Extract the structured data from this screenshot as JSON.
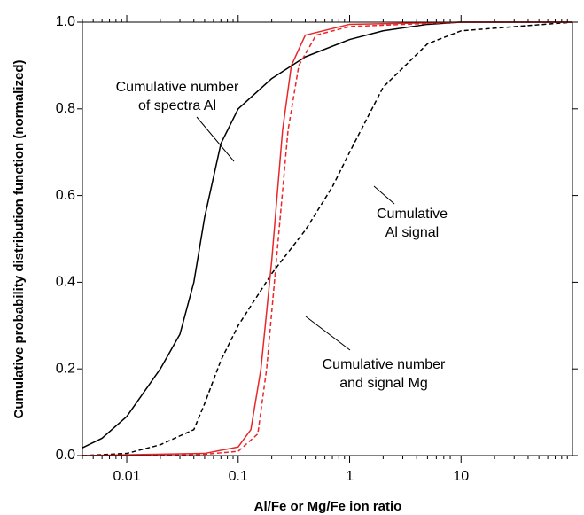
{
  "chart_data": {
    "type": "line",
    "x_label": "Al/Fe or Mg/Fe ion ratio",
    "y_label": "Cumulative probability distribution function (normalized)",
    "xscale": "log",
    "xlim": [
      0.004,
      100
    ],
    "xticks": [
      0.01,
      0.1,
      1,
      10
    ],
    "ylim": [
      0,
      1.0
    ],
    "yticks": [
      {
        "value": 0,
        "label": "0.0"
      },
      {
        "value": 0.2,
        "label": "0.2"
      },
      {
        "value": 0.4,
        "label": "0.4"
      },
      {
        "value": 0.6,
        "label": "0.6"
      },
      {
        "value": 0.8,
        "label": "0.8"
      },
      {
        "value": 1.0,
        "label": "1.0"
      }
    ],
    "series": [
      {
        "color": "#000000",
        "dash": false,
        "x": [
          0.004,
          0.006,
          0.01,
          0.02,
          0.03,
          0.04,
          0.05,
          0.07,
          0.1,
          0.2,
          0.4,
          1,
          2,
          5,
          10,
          100
        ],
        "values": [
          0.018,
          0.04,
          0.09,
          0.2,
          0.28,
          0.4,
          0.55,
          0.72,
          0.8,
          0.87,
          0.92,
          0.96,
          0.98,
          0.995,
          1.0,
          1.0
        ]
      },
      {
        "color": "#000000",
        "dash": true,
        "x": [
          0.004,
          0.01,
          0.02,
          0.04,
          0.05,
          0.07,
          0.1,
          0.2,
          0.4,
          0.7,
          1,
          2,
          5,
          10,
          100
        ],
        "values": [
          0,
          0.005,
          0.025,
          0.06,
          0.12,
          0.22,
          0.3,
          0.42,
          0.52,
          0.62,
          0.7,
          0.85,
          0.95,
          0.98,
          1.0
        ]
      },
      {
        "color": "#e8262a",
        "dash": false,
        "x": [
          0.004,
          0.05,
          0.1,
          0.13,
          0.16,
          0.2,
          0.25,
          0.3,
          0.4,
          1,
          10,
          100
        ],
        "values": [
          0,
          0.005,
          0.02,
          0.06,
          0.2,
          0.45,
          0.75,
          0.9,
          0.97,
          0.995,
          1.0,
          1.0
        ]
      },
      {
        "color": "#e8262a",
        "dash": true,
        "x": [
          0.004,
          0.05,
          0.1,
          0.15,
          0.18,
          0.22,
          0.28,
          0.35,
          0.5,
          1,
          10,
          100
        ],
        "values": [
          0,
          0.003,
          0.01,
          0.05,
          0.2,
          0.45,
          0.75,
          0.9,
          0.97,
          0.99,
          1.0,
          1.0
        ]
      }
    ],
    "annotations": [
      {
        "lines": [
          "Cumulative number",
          "of spectra Al"
        ]
      },
      {
        "lines": [
          "Cumulative",
          "Al signal"
        ]
      },
      {
        "lines": [
          "Cumulative number",
          "and signal Mg"
        ]
      }
    ]
  }
}
